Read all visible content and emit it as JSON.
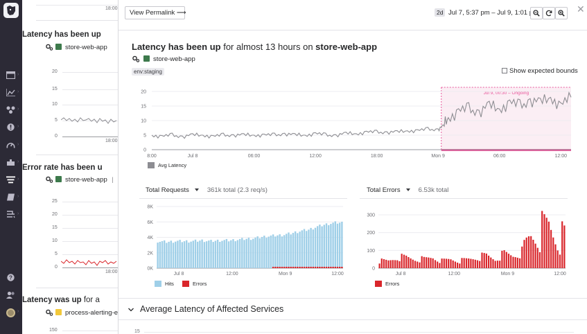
{
  "nav": {
    "items": [
      "dashboard-icon",
      "infrastructure-icon",
      "apm-icon",
      "monitors-icon",
      "synthetics-icon",
      "integrations-icon",
      "logs-icon",
      "notebooks-icon",
      "security-icon"
    ],
    "help": "help-icon",
    "team": "team-icon"
  },
  "background": {
    "top_tick": "18:00",
    "cards": [
      {
        "title_bold": "Latency has been up",
        "title_rest": "",
        "service": "store-web-app",
        "service_suffix": "",
        "color": "#3d7a4c",
        "yticks": [
          "20",
          "15",
          "10",
          "5",
          "0"
        ],
        "xtick": "18:00"
      },
      {
        "title_bold": "Error rate has been u",
        "title_rest": "",
        "service": "store-web-app",
        "service_suffix": "|",
        "color": "#3d7a4c",
        "yticks": [
          "25",
          "20",
          "15",
          "10",
          "5",
          "0"
        ],
        "xtick": "18:00"
      },
      {
        "title_bold": "Latency was up",
        "title_rest": " for a",
        "service": "process-alerting-e",
        "service_suffix": "",
        "color": "#f2c83a",
        "yticks": [
          "150"
        ],
        "xtick": ""
      }
    ]
  },
  "header": {
    "permalink_label": "View Permalink ⟶",
    "range_badge": "2d",
    "range_text": "Jul 7, 5:37 pm – Jul 9, 1:01 pm",
    "close_label": "✕"
  },
  "monitor": {
    "title_bold_1": "Latency has been up",
    "title_normal": " for almost 13 hours on ",
    "title_bold_2": "store-web-app",
    "service": "store-web-app",
    "tag": "env:staging",
    "expected_bounds_label": "Show expected bounds",
    "expected_bounds_checked": false
  },
  "latency_chart": {
    "annotation": "Jul 9, 00:30 – Ongoing",
    "legend": "Avg Latency"
  },
  "requests_header": {
    "label": "Total Requests",
    "summary": "361k total (2.3 req/s)"
  },
  "errors_header": {
    "label": "Total Errors",
    "summary": "6.53k total"
  },
  "requests_legend": {
    "hits": "Hits",
    "errors": "Errors"
  },
  "errors_legend": {
    "errors": "Errors"
  },
  "section": {
    "label": "Average Latency of Affected Services",
    "first_tick": "15"
  },
  "colors": {
    "latency_line": "#8d8d92",
    "anomaly_fill": "#fbeef4",
    "anomaly_border": "#e8559a",
    "hits": "#9fcfe8",
    "errors": "#d9262b",
    "service_green": "#3d7a4c",
    "service_yellow": "#f2c83a"
  },
  "chart_data": [
    {
      "type": "line",
      "series": [
        {
          "name": "Avg Latency",
          "x": [
            "Jul 7 20:00",
            "Jul 7 21:00",
            "Jul 7 22:00",
            "Jul 7 23:00",
            "Jul 8 00:00",
            "Jul 8 01:00",
            "Jul 8 02:00",
            "Jul 8 03:00",
            "Jul 8 04:00",
            "Jul 8 05:00",
            "Jul 8 06:00",
            "Jul 8 07:00",
            "Jul 8 08:00",
            "Jul 8 09:00",
            "Jul 8 10:00",
            "Jul 8 11:00",
            "Jul 8 12:00",
            "Jul 8 13:00",
            "Jul 8 14:00",
            "Jul 8 15:00",
            "Jul 8 16:00",
            "Jul 8 17:00",
            "Jul 8 18:00",
            "Jul 8 19:00",
            "Jul 8 20:00",
            "Jul 8 21:00",
            "Jul 8 22:00",
            "Jul 8 23:00",
            "Jul 9 00:00",
            "Jul 9 00:30",
            "Jul 9 01:00",
            "Jul 9 02:00",
            "Jul 9 03:00",
            "Jul 9 04:00",
            "Jul 9 05:00",
            "Jul 9 06:00",
            "Jul 9 07:00",
            "Jul 9 08:00",
            "Jul 9 09:00",
            "Jul 9 10:00",
            "Jul 9 11:00",
            "Jul 9 12:00",
            "Jul 9 13:00"
          ],
          "y": [
            5,
            4.5,
            5,
            4.5,
            5,
            5,
            4.5,
            5,
            5,
            5,
            5,
            5,
            5,
            5.5,
            5,
            5,
            5.5,
            5,
            5,
            5.5,
            5.5,
            6,
            6,
            6,
            6,
            6.5,
            6.5,
            7,
            7,
            8,
            11,
            13,
            14,
            13,
            15,
            14,
            16,
            15,
            17,
            16,
            18,
            15,
            18
          ]
        }
      ],
      "xticks": [
        "8:00",
        "Jul 8",
        "06:00",
        "12:00",
        "18:00",
        "Mon 9",
        "06:00",
        "12:00"
      ],
      "yticks": [
        0,
        5,
        10,
        15,
        20
      ],
      "ylim": [
        0,
        20
      ],
      "legend": [
        "Avg Latency"
      ],
      "annotation": "Jul 9, 00:30 – Ongoing"
    },
    {
      "type": "bar",
      "title": "Total Requests",
      "x": [
        "Jul 7 20:00",
        "Jul 7 22:00",
        "Jul 8 00:00",
        "Jul 8 02:00",
        "Jul 8 04:00",
        "Jul 8 06:00",
        "Jul 8 08:00",
        "Jul 8 10:00",
        "Jul 8 12:00",
        "Jul 8 14:00",
        "Jul 8 16:00",
        "Jul 8 18:00",
        "Jul 8 20:00",
        "Jul 8 22:00",
        "Jul 9 00:00",
        "Jul 9 02:00",
        "Jul 9 04:00",
        "Jul 9 06:00",
        "Jul 9 08:00",
        "Jul 9 10:00",
        "Jul 9 12:00"
      ],
      "series": [
        {
          "name": "Hits",
          "values": [
            3500,
            3400,
            3500,
            3500,
            3500,
            3600,
            3500,
            3600,
            3600,
            3700,
            3800,
            3900,
            4100,
            4200,
            4300,
            4500,
            4800,
            5000,
            5400,
            5700,
            5900
          ]
        },
        {
          "name": "Errors",
          "values": [
            0,
            0,
            0,
            0,
            0,
            0,
            0,
            0,
            0,
            0,
            0,
            0,
            0,
            50,
            50,
            100,
            100,
            150,
            150,
            100,
            150
          ]
        }
      ],
      "xticks": [
        "Jul 8",
        "12:00",
        "Mon 9",
        "12:00"
      ],
      "yticks": [
        "0K",
        "2K",
        "4K",
        "6K",
        "8K"
      ],
      "ylim": [
        0,
        8000
      ],
      "legend": [
        "Hits",
        "Errors"
      ]
    },
    {
      "type": "bar",
      "title": "Total Errors",
      "x": [
        "Jul 7 20:00",
        "Jul 7 22:00",
        "Jul 8 00:00",
        "Jul 8 02:00",
        "Jul 8 04:00",
        "Jul 8 06:00",
        "Jul 8 08:00",
        "Jul 8 10:00",
        "Jul 8 12:00",
        "Jul 8 14:00",
        "Jul 8 16:00",
        "Jul 8 18:00",
        "Jul 8 20:00",
        "Jul 8 22:00",
        "Jul 9 00:00",
        "Jul 9 02:00",
        "Jul 9 04:00",
        "Jul 9 06:00",
        "Jul 9 08:00",
        "Jul 9 10:00",
        "Jul 9 12:00"
      ],
      "series": [
        {
          "name": "Errors",
          "values": [
            40,
            40,
            60,
            60,
            50,
            50,
            60,
            40,
            50,
            40,
            50,
            60,
            70,
            50,
            80,
            70,
            90,
            180,
            200,
            230,
            170
          ]
        }
      ],
      "xticks": [
        "Jul 8",
        "12:00",
        "Mon 9",
        "12:00"
      ],
      "yticks": [
        0,
        100,
        200,
        300
      ],
      "ylim": [
        0,
        300
      ],
      "legend": [
        "Errors"
      ]
    }
  ]
}
